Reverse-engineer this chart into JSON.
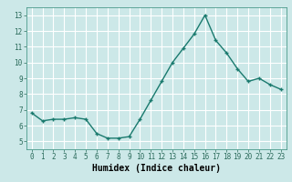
{
  "x": [
    0,
    1,
    2,
    3,
    4,
    5,
    6,
    7,
    8,
    9,
    10,
    11,
    12,
    13,
    14,
    15,
    16,
    17,
    18,
    19,
    20,
    21,
    22,
    23
  ],
  "y": [
    6.8,
    6.3,
    6.4,
    6.4,
    6.5,
    6.4,
    5.5,
    5.2,
    5.2,
    5.3,
    6.4,
    7.6,
    8.8,
    10.0,
    10.9,
    11.8,
    13.0,
    11.4,
    10.6,
    9.6,
    8.8,
    9.0,
    8.6,
    8.3
  ],
  "line_color": "#1a7a6e",
  "marker": "+",
  "marker_size": 3,
  "marker_linewidth": 1.0,
  "bg_color": "#cce8e8",
  "grid_color": "#ffffff",
  "xlabel": "Humidex (Indice chaleur)",
  "xlabel_fontsize": 7,
  "ylim": [
    4.5,
    13.5
  ],
  "xlim": [
    -0.5,
    23.5
  ],
  "yticks": [
    5,
    6,
    7,
    8,
    9,
    10,
    11,
    12,
    13
  ],
  "xticks": [
    0,
    1,
    2,
    3,
    4,
    5,
    6,
    7,
    8,
    9,
    10,
    11,
    12,
    13,
    14,
    15,
    16,
    17,
    18,
    19,
    20,
    21,
    22,
    23
  ],
  "tick_fontsize": 5.5,
  "linewidth": 1.0
}
